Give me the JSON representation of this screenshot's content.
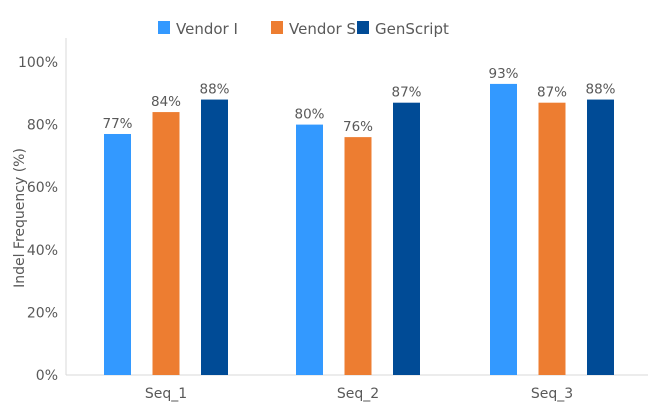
{
  "chart_data": {
    "type": "bar",
    "title": "",
    "xlabel": "",
    "ylabel": "Indel Frequency (%)",
    "ylim": [
      0,
      100
    ],
    "yticks": [
      "0%",
      "20%",
      "40%",
      "60%",
      "80%",
      "100%"
    ],
    "grid": false,
    "legend_position": "top",
    "categories": [
      "Seq_1",
      "Seq_2",
      "Seq_3"
    ],
    "series": [
      {
        "name": "Vendor I",
        "color": "#3399ff",
        "values": [
          77,
          80,
          93
        ],
        "labels": [
          "77%",
          "80%",
          "93%"
        ]
      },
      {
        "name": "Vendor S",
        "color": "#ed7d31",
        "values": [
          84,
          76,
          87
        ],
        "labels": [
          "84%",
          "76%",
          "87%"
        ]
      },
      {
        "name": "GenScript",
        "color": "#004b96",
        "values": [
          88,
          87,
          88
        ],
        "labels": [
          "88%",
          "87%",
          "88%"
        ]
      }
    ]
  }
}
